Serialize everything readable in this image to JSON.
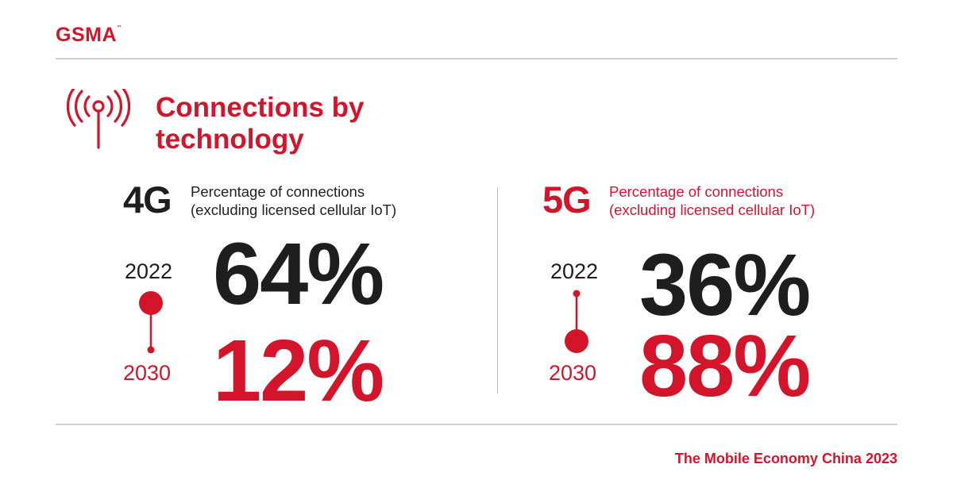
{
  "brand": {
    "logo_text": "GSMA"
  },
  "title": {
    "line1": "Connections by",
    "line2": "technology"
  },
  "icon": {
    "name": "antenna-signal-icon",
    "color": "#d4142b"
  },
  "panels": [
    {
      "tech": "4G",
      "subtitle_line1": "Percentage of connections",
      "subtitle_line2": "(excluding licensed cellular IoT)",
      "year_start": "2022",
      "year_end": "2030",
      "value_start": "64%",
      "value_end": "12%"
    },
    {
      "tech": "5G",
      "subtitle_line1": "Percentage of connections",
      "subtitle_line2": "(excluding licensed cellular IoT)",
      "year_start": "2022",
      "year_end": "2030",
      "value_start": "36%",
      "value_end": "88%"
    }
  ],
  "footer": {
    "text": "The Mobile Economy China 2023"
  },
  "colors": {
    "accent": "#d4142b",
    "text": "#1e1e1e",
    "rule": "#cfcfcf"
  }
}
